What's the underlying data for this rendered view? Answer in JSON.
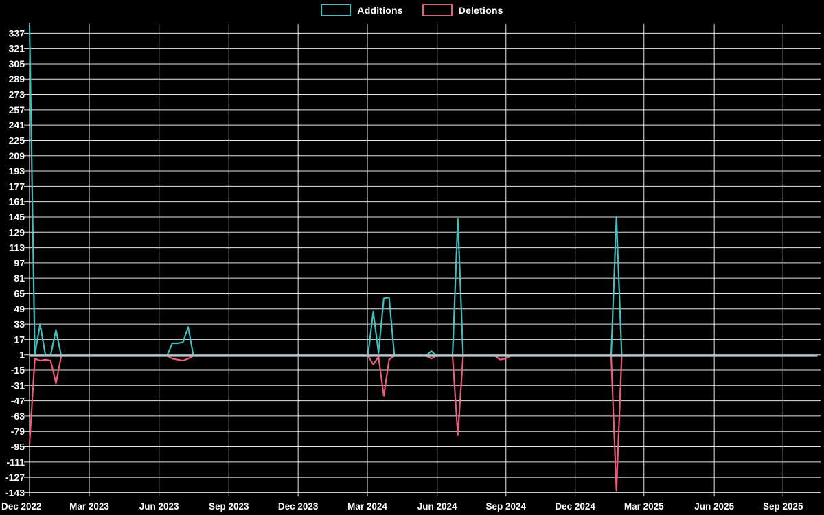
{
  "chart_data": {
    "type": "line",
    "title": "",
    "background_color": "#000000",
    "grid": true,
    "grid_color": "#e6e6e6",
    "axis_color": "#ffffff",
    "zero_line_color": "#b7c5cd",
    "legend_position": "top-center",
    "total_weeks": 150,
    "y_axis": {
      "min": -147,
      "max": 348,
      "step": 16,
      "ticks": [
        337,
        321,
        305,
        289,
        273,
        257,
        241,
        225,
        209,
        193,
        177,
        161,
        145,
        129,
        113,
        97,
        81,
        65,
        49,
        33,
        17,
        1,
        -15,
        -31,
        -47,
        -63,
        -79,
        -95,
        -111,
        -127,
        -143
      ]
    },
    "x_axis": {
      "ticks": [
        {
          "label": "Dec 2022",
          "week": 0
        },
        {
          "label": "Mar 2023",
          "week": 11.3
        },
        {
          "label": "Jun 2023",
          "week": 24.5
        },
        {
          "label": "Sep 2023",
          "week": 37.7
        },
        {
          "label": "Dec 2023",
          "week": 50.8
        },
        {
          "label": "Mar 2024",
          "week": 63.9
        },
        {
          "label": "Jun 2024",
          "week": 77.1
        },
        {
          "label": "Sep 2024",
          "week": 90.1
        },
        {
          "label": "Dec 2024",
          "week": 103.2
        },
        {
          "label": "Mar 2025",
          "week": 116.2
        },
        {
          "label": "Jun 2025",
          "week": 129.5
        },
        {
          "label": "Sep 2025",
          "week": 142.5
        }
      ]
    },
    "series": [
      {
        "name": "Additions",
        "color": "#41bfbf",
        "default_value": 0,
        "nonzero_points": [
          [
            0,
            345
          ],
          [
            1,
            1
          ],
          [
            2,
            33
          ],
          [
            3,
            1
          ],
          [
            4,
            1
          ],
          [
            5,
            27
          ],
          [
            27,
            13
          ],
          [
            28,
            13
          ],
          [
            29,
            14
          ],
          [
            30,
            30
          ],
          [
            65,
            46
          ],
          [
            66,
            3
          ],
          [
            67,
            60
          ],
          [
            68,
            61
          ],
          [
            76,
            5
          ],
          [
            81,
            143
          ],
          [
            111,
            145
          ]
        ]
      },
      {
        "name": "Deletions",
        "color": "#ee5c7b",
        "default_value": 0,
        "nonzero_points": [
          [
            0,
            -92
          ],
          [
            1,
            -3
          ],
          [
            2,
            -5
          ],
          [
            3,
            -4
          ],
          [
            4,
            -5
          ],
          [
            5,
            -29
          ],
          [
            27,
            -3
          ],
          [
            28,
            -4
          ],
          [
            29,
            -5
          ],
          [
            30,
            -3
          ],
          [
            65,
            -9
          ],
          [
            66,
            -1
          ],
          [
            67,
            -42
          ],
          [
            68,
            -4
          ],
          [
            76,
            -3
          ],
          [
            81,
            -83
          ],
          [
            89,
            -4
          ],
          [
            90,
            -3
          ],
          [
            111,
            -141
          ]
        ]
      }
    ]
  }
}
